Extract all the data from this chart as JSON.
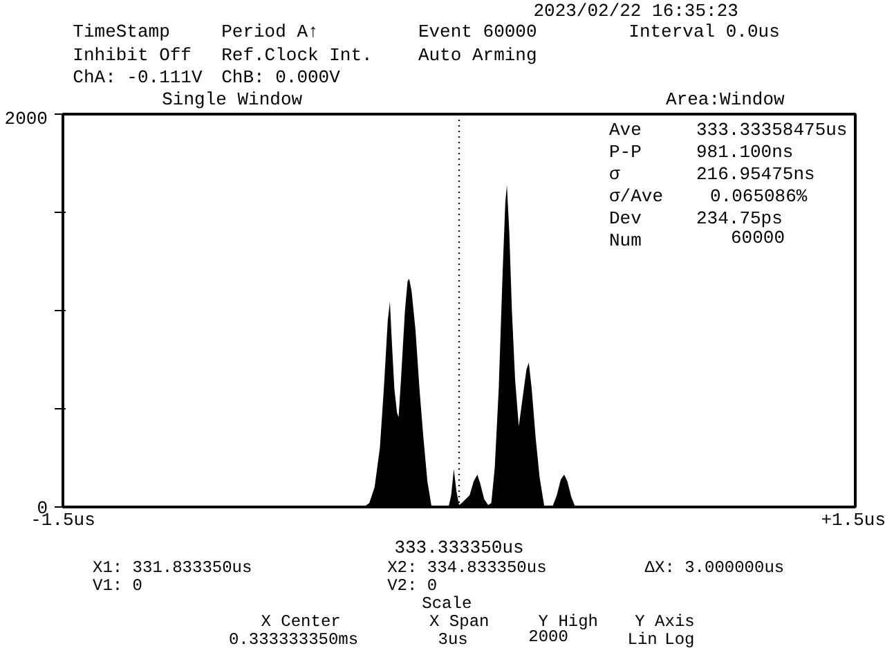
{
  "chart_data": {
    "type": "area",
    "title": "Single Window",
    "subtitle": "Area:Window",
    "color": "#000000",
    "x": [
      -1.5,
      -0.5,
      -0.36,
      -0.34,
      -0.32,
      -0.3,
      -0.285,
      -0.27,
      -0.262,
      -0.255,
      -0.245,
      -0.235,
      -0.229,
      -0.22,
      -0.205,
      -0.195,
      -0.189,
      -0.18,
      -0.165,
      -0.15,
      -0.135,
      -0.12,
      -0.104,
      -0.04,
      -0.03,
      -0.02,
      -0.01,
      0.0,
      0.01,
      0.04,
      0.055,
      0.069,
      0.08,
      0.095,
      0.11,
      0.122,
      0.135,
      0.15,
      0.165,
      0.175,
      0.181,
      0.19,
      0.2,
      0.212,
      0.226,
      0.24,
      0.255,
      0.264,
      0.275,
      0.29,
      0.305,
      0.323,
      0.353,
      0.37,
      0.385,
      0.398,
      0.41,
      0.425,
      0.44,
      1.5
    ],
    "values": [
      0,
      0,
      0,
      20,
      100,
      300,
      600,
      950,
      1045,
      850,
      600,
      480,
      458,
      650,
      1000,
      1150,
      1162,
      1100,
      900,
      600,
      350,
      130,
      0,
      0,
      60,
      193,
      80,
      10,
      20,
      60,
      130,
      165,
      120,
      40,
      10,
      20,
      200,
      600,
      1200,
      1550,
      1639,
      1400,
      1000,
      650,
      411,
      550,
      700,
      735,
      600,
      350,
      150,
      0,
      0,
      60,
      140,
      165,
      130,
      50,
      0,
      0
    ],
    "xlim": [
      -1.5,
      1.5
    ],
    "ylim": [
      0,
      2000
    ],
    "xticks": [
      {
        "value": -1.5,
        "label": "-1.5us"
      },
      {
        "value": 1.5,
        "label": "+1.5us"
      }
    ],
    "yticks": [
      0,
      {
        "value": 500,
        "label": null
      },
      {
        "value": 1000,
        "label": null
      },
      {
        "value": 1500,
        "label": null
      },
      2000
    ],
    "ref_lines": [
      {
        "axis": "x",
        "value": 0,
        "label": "333.333350us",
        "line_style": "dotted"
      }
    ],
    "annotations": [
      "2023/02/22 16:35:23",
      "TimeStamp",
      "Period A↑",
      "Event 60000",
      "Interval 0.0us",
      "Inhibit Off",
      "Ref.Clock Int.",
      "Auto Arming",
      "ChA: -0.111V",
      "ChB:  0.000V",
      "Ave",
      "333.33358475us",
      "P-P",
      "981.100ns",
      "σ",
      "216.95475ns",
      "σ/Ave",
      "0.065086%",
      "Dev",
      "234.75ps",
      "Num",
      "60000",
      "X1: 331.833350us",
      "X2: 334.833350us",
      "ΔX: 3.000000us",
      "V1: 0",
      "V2: 0",
      "Scale",
      "X Center",
      "0.333333350ms",
      "X Span",
      "3us",
      "Y High",
      "2000",
      "Y Axis",
      "Lin",
      "Log"
    ]
  }
}
